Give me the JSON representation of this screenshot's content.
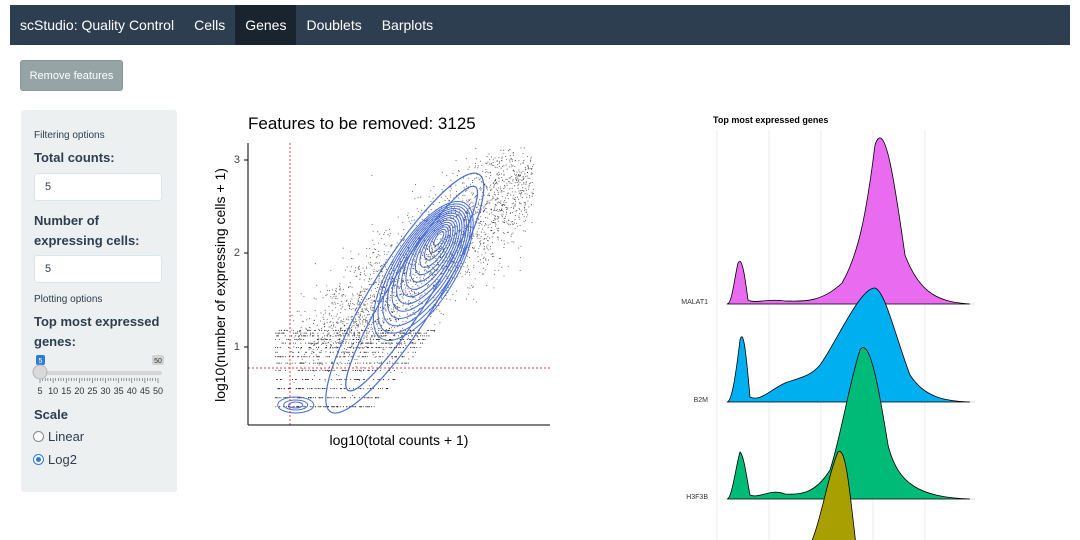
{
  "navbar": {
    "brand": "scStudio: Quality Control",
    "tabs": [
      {
        "label": "Cells",
        "active": false
      },
      {
        "label": "Genes",
        "active": true
      },
      {
        "label": "Doublets",
        "active": false
      },
      {
        "label": "Barplots",
        "active": false
      }
    ]
  },
  "toolbar": {
    "remove_label": "Remove features"
  },
  "sidebar": {
    "filtering_title": "Filtering options",
    "total_counts_label": "Total counts:",
    "total_counts_value": "5",
    "expressing_cells_label_1": "Number of",
    "expressing_cells_label_2": "expressing cells:",
    "expressing_cells_value": "5",
    "plotting_title": "Plotting options",
    "top_label_1": "Top most expressed",
    "top_label_2": "genes:",
    "slider": {
      "min": 5,
      "max": 50,
      "value": 5,
      "value_label": "5",
      "max_label": "50",
      "ticks": [
        "5",
        "10",
        "15",
        "20",
        "25",
        "30",
        "35",
        "40",
        "45",
        "50"
      ]
    },
    "scale_label": "Scale",
    "scale_options": [
      {
        "label": "Linear",
        "selected": false
      },
      {
        "label": "Log2",
        "selected": true
      }
    ]
  },
  "scatter": {
    "title": "Features to be removed: 3125",
    "xlabel": "log10(total counts + 1)",
    "ylabel": "log10(number of expressing cells + 1)",
    "y_ticks": [
      "1",
      "2",
      "3"
    ]
  },
  "ridges": {
    "title": "Top most expressed genes",
    "genes": [
      {
        "name": "MALAT1",
        "color": "#e86bf0"
      },
      {
        "name": "B2M",
        "color": "#00aff0"
      },
      {
        "name": "H3F3B",
        "color": "#00bb78"
      },
      {
        "name": "",
        "color": "#a8a000"
      }
    ]
  },
  "chart_data": [
    {
      "type": "scatter",
      "title": "Features to be removed: 3125",
      "xlabel": "log10(total counts + 1)",
      "ylabel": "log10(number of expressing cells + 1)",
      "ylim": [
        0.1,
        3.2
      ],
      "y_ticks": [
        1,
        2,
        3
      ],
      "threshold_lines": {
        "x": 0.78,
        "y": 0.78,
        "color": "#e8413b"
      },
      "density_contours": true,
      "contour_color": "#4a6ed8"
    },
    {
      "type": "area",
      "title": "Top most expressed genes",
      "series": [
        {
          "name": "MALAT1",
          "color": "#e86bf0"
        },
        {
          "name": "B2M",
          "color": "#00aff0"
        },
        {
          "name": "H3F3B",
          "color": "#00bb78"
        },
        {
          "color": "#a8a000"
        }
      ]
    }
  ]
}
